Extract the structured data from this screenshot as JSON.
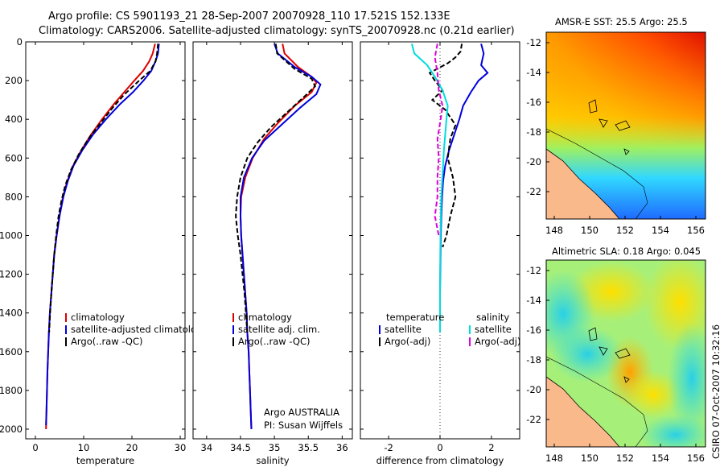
{
  "header": {
    "line1": "Argo profile: CS 5901193_21 28-Sep-2007 20070928_110 17.521S 152.133E",
    "line2": "Climatology: CARS2006. Satellite-adjusted climatology: synTS_20070928.nc (0.21d earlier)"
  },
  "chart_data": [
    {
      "type": "line",
      "id": "temperature",
      "xlabel": "temperature",
      "ylabel": "",
      "xlim": [
        -2,
        31
      ],
      "ylim": [
        2050,
        0
      ],
      "xticks": [
        0,
        10,
        20,
        30
      ],
      "yticks": [
        0,
        200,
        400,
        600,
        800,
        1000,
        1200,
        1400,
        1600,
        1800,
        2000
      ],
      "legend": {
        "entries": [
          "climatology",
          "satellite-adjusted climatology",
          "Argo(..raw -QC)"
        ],
        "colors": [
          "#dd0000",
          "#0000dd",
          "#000000"
        ]
      },
      "series": [
        {
          "name": "climatology",
          "color": "#dd0000",
          "dash": false,
          "points": [
            [
              24.8,
              10
            ],
            [
              24.3,
              60
            ],
            [
              23.6,
              100
            ],
            [
              22.3,
              150
            ],
            [
              20.5,
              200
            ],
            [
              18.4,
              260
            ],
            [
              16.3,
              320
            ],
            [
              13.8,
              400
            ],
            [
              11.5,
              480
            ],
            [
              9.5,
              560
            ],
            [
              7.8,
              640
            ],
            [
              6.6,
              720
            ],
            [
              5.7,
              800
            ],
            [
              5.0,
              900
            ],
            [
              4.4,
              1000
            ],
            [
              3.9,
              1100
            ],
            [
              3.6,
              1200
            ],
            [
              3.3,
              1300
            ],
            [
              3.0,
              1400
            ],
            [
              2.8,
              1500
            ],
            [
              2.65,
              1600
            ],
            [
              2.5,
              1700
            ],
            [
              2.4,
              1800
            ],
            [
              2.3,
              1900
            ],
            [
              2.2,
              2000
            ]
          ]
        },
        {
          "name": "satellite-adjusted climatology",
          "color": "#0000dd",
          "dash": false,
          "points": [
            [
              25.6,
              10
            ],
            [
              25.4,
              60
            ],
            [
              24.9,
              100
            ],
            [
              24.0,
              150
            ],
            [
              22.4,
              200
            ],
            [
              20.2,
              260
            ],
            [
              17.6,
              320
            ],
            [
              14.6,
              400
            ],
            [
              11.9,
              480
            ],
            [
              9.7,
              560
            ],
            [
              7.9,
              640
            ],
            [
              6.7,
              720
            ],
            [
              5.8,
              800
            ],
            [
              5.0,
              900
            ],
            [
              4.4,
              1000
            ],
            [
              3.9,
              1100
            ],
            [
              3.6,
              1200
            ],
            [
              3.3,
              1300
            ],
            [
              3.0,
              1400
            ],
            [
              2.8,
              1500
            ],
            [
              2.65,
              1600
            ],
            [
              2.5,
              1700
            ],
            [
              2.4,
              1800
            ],
            [
              2.3,
              1900
            ],
            [
              2.2,
              1980
            ]
          ]
        },
        {
          "name": "Argo(..raw -QC)",
          "color": "#000000",
          "dash": true,
          "points": [
            [
              25.4,
              10
            ],
            [
              25.2,
              60
            ],
            [
              24.9,
              100
            ],
            [
              23.8,
              150
            ],
            [
              21.5,
              200
            ],
            [
              18.5,
              270
            ],
            [
              16.0,
              340
            ],
            [
              13.5,
              420
            ],
            [
              11.0,
              500
            ],
            [
              9.0,
              580
            ],
            [
              7.4,
              660
            ],
            [
              6.2,
              740
            ],
            [
              5.4,
              820
            ],
            [
              4.8,
              900
            ],
            [
              4.3,
              1000
            ],
            [
              3.9,
              1100
            ],
            [
              3.6,
              1200
            ],
            [
              3.3,
              1300
            ],
            [
              3.05,
              1400
            ],
            [
              2.85,
              1500
            ]
          ]
        }
      ]
    },
    {
      "type": "line",
      "id": "salinity",
      "xlabel": "salinity",
      "ylabel": "",
      "xlim": [
        33.8,
        36.15
      ],
      "ylim": [
        2050,
        0
      ],
      "xticks": [
        34,
        34.5,
        35,
        35.5,
        36
      ],
      "legend": {
        "entries": [
          "climatology",
          "satellite adj. clim.",
          "Argo(..raw -QC)"
        ],
        "colors": [
          "#dd0000",
          "#0000dd",
          "#000000"
        ]
      },
      "annotation": [
        "Argo AUSTRALIA",
        "PI: Susan Wijffels"
      ],
      "series": [
        {
          "name": "climatology",
          "color": "#dd0000",
          "dash": false,
          "points": [
            [
              35.12,
              10
            ],
            [
              35.15,
              60
            ],
            [
              35.35,
              130
            ],
            [
              35.55,
              180
            ],
            [
              35.62,
              210
            ],
            [
              35.55,
              260
            ],
            [
              35.3,
              330
            ],
            [
              35.05,
              420
            ],
            [
              34.85,
              500
            ],
            [
              34.68,
              600
            ],
            [
              34.57,
              700
            ],
            [
              34.51,
              800
            ],
            [
              34.5,
              900
            ],
            [
              34.51,
              1000
            ],
            [
              34.53,
              1100
            ],
            [
              34.55,
              1200
            ],
            [
              34.57,
              1300
            ],
            [
              34.59,
              1400
            ],
            [
              34.6,
              1500
            ],
            [
              34.62,
              1600
            ],
            [
              34.63,
              1700
            ],
            [
              34.64,
              1800
            ],
            [
              34.65,
              1900
            ],
            [
              34.66,
              2000
            ]
          ]
        },
        {
          "name": "satellite adj. clim.",
          "color": "#0000dd",
          "dash": false,
          "points": [
            [
              35.0,
              10
            ],
            [
              35.05,
              60
            ],
            [
              35.3,
              130
            ],
            [
              35.55,
              180
            ],
            [
              35.68,
              220
            ],
            [
              35.62,
              270
            ],
            [
              35.38,
              340
            ],
            [
              35.1,
              430
            ],
            [
              34.85,
              510
            ],
            [
              34.67,
              600
            ],
            [
              34.55,
              700
            ],
            [
              34.5,
              800
            ],
            [
              34.5,
              900
            ],
            [
              34.51,
              1000
            ],
            [
              34.53,
              1100
            ],
            [
              34.55,
              1200
            ],
            [
              34.57,
              1300
            ],
            [
              34.59,
              1400
            ],
            [
              34.6,
              1500
            ],
            [
              34.62,
              1600
            ],
            [
              34.63,
              1700
            ],
            [
              34.64,
              1800
            ],
            [
              34.65,
              1900
            ],
            [
              34.66,
              2000
            ]
          ]
        },
        {
          "name": "Argo(..raw -QC)",
          "color": "#000000",
          "dash": true,
          "points": [
            [
              35.02,
              10
            ],
            [
              35.04,
              60
            ],
            [
              35.3,
              140
            ],
            [
              35.55,
              190
            ],
            [
              35.6,
              230
            ],
            [
              35.45,
              280
            ],
            [
              35.2,
              360
            ],
            [
              34.95,
              440
            ],
            [
              34.75,
              520
            ],
            [
              34.6,
              600
            ],
            [
              34.5,
              700
            ],
            [
              34.45,
              800
            ],
            [
              34.43,
              900
            ],
            [
              34.46,
              1000
            ],
            [
              34.5,
              1100
            ],
            [
              34.53,
              1200
            ],
            [
              34.56,
              1300
            ],
            [
              34.58,
              1400
            ],
            [
              34.6,
              1500
            ]
          ]
        }
      ]
    },
    {
      "type": "line",
      "id": "difference",
      "xlabel": "difference from climatology",
      "ylabel": "",
      "xlim": [
        -3.1,
        3.1
      ],
      "ylim": [
        2050,
        0
      ],
      "xticks": [
        -2,
        0,
        2
      ],
      "legend": {
        "groups": [
          {
            "header": "temperature",
            "entries": [
              "satellite",
              "Argo(-adj)"
            ],
            "colors": [
              "#0000dd",
              "#000000"
            ]
          },
          {
            "header": "salinity",
            "entries": [
              "satellite",
              "Argo(-adj)"
            ],
            "colors": [
              "#00dddd",
              "#dd00dd"
            ]
          }
        ]
      },
      "series": [
        {
          "name": "temperature satellite",
          "color": "#0000dd",
          "dash": false,
          "points": [
            [
              1.6,
              10
            ],
            [
              1.7,
              60
            ],
            [
              1.6,
              120
            ],
            [
              1.85,
              160
            ],
            [
              1.5,
              200
            ],
            [
              1.2,
              260
            ],
            [
              0.9,
              330
            ],
            [
              0.75,
              400
            ],
            [
              0.55,
              480
            ],
            [
              0.35,
              560
            ],
            [
              0.2,
              640
            ],
            [
              0.12,
              720
            ],
            [
              0.08,
              800
            ],
            [
              0.05,
              900
            ],
            [
              0.03,
              1000
            ],
            [
              0.02,
              1100
            ],
            [
              0.01,
              1200
            ],
            [
              0.0,
              1300
            ],
            [
              0.0,
              1400
            ],
            [
              0.0,
              1500
            ]
          ]
        },
        {
          "name": "temperature Argo(-adj)",
          "color": "#000000",
          "dash": true,
          "points": [
            [
              0.85,
              10
            ],
            [
              0.8,
              50
            ],
            [
              0.6,
              80
            ],
            [
              0.3,
              110
            ],
            [
              -0.4,
              160
            ],
            [
              -0.2,
              200
            ],
            [
              0.1,
              250
            ],
            [
              -0.3,
              300
            ],
            [
              0.2,
              350
            ],
            [
              0.6,
              430
            ],
            [
              0.4,
              500
            ],
            [
              0.3,
              600
            ],
            [
              0.5,
              700
            ],
            [
              0.6,
              800
            ],
            [
              0.4,
              900
            ],
            [
              0.25,
              1000
            ],
            [
              0.1,
              1060
            ]
          ]
        },
        {
          "name": "salinity satellite",
          "color": "#00dddd",
          "dash": false,
          "points": [
            [
              -1.1,
              10
            ],
            [
              -1.0,
              60
            ],
            [
              -0.5,
              120
            ],
            [
              -0.2,
              180
            ],
            [
              0.1,
              250
            ],
            [
              0.3,
              330
            ],
            [
              0.25,
              400
            ],
            [
              0.2,
              480
            ],
            [
              0.15,
              560
            ],
            [
              0.12,
              640
            ],
            [
              0.08,
              720
            ],
            [
              0.05,
              800
            ],
            [
              0.03,
              900
            ],
            [
              0.02,
              1000
            ],
            [
              0.01,
              1100
            ],
            [
              0.0,
              1300
            ],
            [
              0.0,
              1500
            ]
          ]
        },
        {
          "name": "salinity Argo(-adj)",
          "color": "#dd00dd",
          "dash": true,
          "points": [
            [
              -0.1,
              10
            ],
            [
              -0.2,
              80
            ],
            [
              -0.1,
              160
            ],
            [
              -0.05,
              250
            ],
            [
              0.1,
              330
            ],
            [
              0.0,
              420
            ],
            [
              -0.1,
              500
            ],
            [
              -0.05,
              600
            ],
            [
              -0.1,
              700
            ],
            [
              -0.1,
              800
            ],
            [
              -0.2,
              900
            ],
            [
              -0.05,
              1000
            ]
          ]
        }
      ]
    }
  ],
  "maps": {
    "sst": {
      "title": "AMSR-E SST: 25.5 Argo: 25.5",
      "xticks": [
        "148",
        "150",
        "152",
        "154",
        "156"
      ],
      "yticks": [
        "-12",
        "-14",
        "-16",
        "-18",
        "-20",
        "-22"
      ]
    },
    "sla": {
      "title": "Altimetric SLA: 0.18 Argo: 0.045",
      "xticks": [
        "148",
        "150",
        "152",
        "154",
        "156"
      ],
      "yticks": [
        "-12",
        "-14",
        "-16",
        "-18",
        "-20",
        "-22"
      ]
    }
  },
  "footer": {
    "stamp": "CSIRO 07-Oct-2007 10:32:16"
  }
}
